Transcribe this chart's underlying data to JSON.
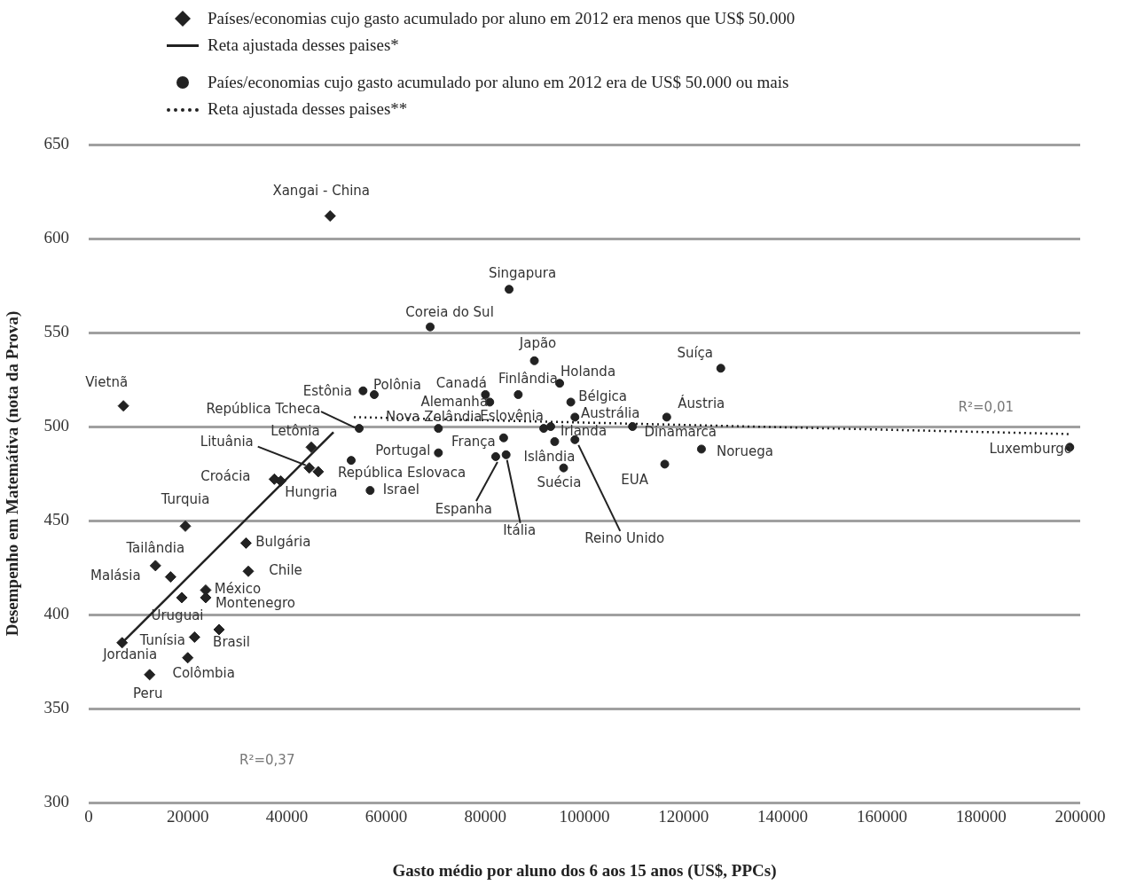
{
  "chart_data": {
    "type": "scatter",
    "xlabel": "Gasto médio por aluno dos 6 aos 15 anos (US$, PPCs)",
    "ylabel": "Desempenho em Matemátiva (nota da Prova)",
    "xlim": [
      0,
      200000
    ],
    "xticks": [
      0,
      20000,
      40000,
      60000,
      80000,
      100000,
      120000,
      140000,
      160000,
      180000,
      200000
    ],
    "ylim": [
      300,
      650
    ],
    "yticks": [
      300,
      350,
      400,
      450,
      500,
      550,
      600,
      650
    ],
    "grid": "y",
    "legend": "top",
    "series": [
      {
        "name": "Países/economias cujo gasto acumulado por aluno em 2012 era menos que US$ 50.000",
        "type": "scatter",
        "marker": "diamond",
        "color": "#222222",
        "x": [
          48700,
          7000,
          44900,
          44500,
          46300,
          37450,
          38750,
          19500,
          13470,
          16520,
          31730,
          32200,
          23600,
          23600,
          18780,
          26300,
          21350,
          6740,
          19980,
          12290
        ],
        "values": [
          612,
          511,
          489,
          478,
          476,
          472,
          471,
          447,
          426,
          420,
          438,
          423,
          413,
          409,
          409,
          392,
          388,
          385,
          377,
          368
        ]
      },
      {
        "name": "Reta ajustada desses paises*",
        "type": "line",
        "line_style": "solid",
        "marker": "none",
        "color": "#222222",
        "x": [
          6740,
          49380
        ],
        "values": [
          385,
          497
        ]
      },
      {
        "name": "Paíes/economias cujo gasto acumulado por aluno em 2012 era de US$ 50.000 ou mais",
        "type": "scatter",
        "marker": "circle",
        "color": "#222222",
        "x": [
          84800,
          68880,
          89900,
          127500,
          95000,
          80030,
          86650,
          80900,
          97250,
          98080,
          116600,
          70540,
          91780,
          93200,
          109700,
          83700,
          94000,
          98080,
          70540,
          82100,
          84200,
          95800,
          123600,
          116200,
          55340,
          57600,
          54560,
          52950,
          56770,
          197900
        ],
        "values": [
          573,
          553,
          535,
          531,
          523,
          517,
          517,
          513,
          513,
          505,
          505,
          499,
          499,
          500,
          500,
          494,
          492,
          493,
          486,
          484,
          485,
          478,
          488,
          480,
          519,
          517,
          499,
          482,
          466,
          489
        ]
      },
      {
        "name": "Reta ajustada desses paises**",
        "type": "line",
        "line_style": "dotted",
        "marker": "none",
        "color": "#222222",
        "x": [
          53500,
          197900
        ],
        "values": [
          505,
          496
        ]
      }
    ],
    "annotations": [
      "R²=0,37",
      "R²=0,01",
      {
        "text": "Xangai - China",
        "x": 48700,
        "y": 612
      },
      {
        "text": "Vietnã",
        "x": 7000,
        "y": 511
      },
      {
        "text": "Letônia",
        "x": 44900,
        "y": 489
      },
      {
        "text": "Lituânia",
        "x": 44500,
        "y": 478
      },
      {
        "text": "Hungria",
        "x": 46300,
        "y": 476
      },
      {
        "text": "Croácia",
        "x": 37450,
        "y": 472
      },
      {
        "text": "Turquia",
        "x": 19500,
        "y": 447
      },
      {
        "text": "Tailândia",
        "x": 13470,
        "y": 426
      },
      {
        "text": "Malásia",
        "x": 16520,
        "y": 420
      },
      {
        "text": "Bulgária",
        "x": 31730,
        "y": 438
      },
      {
        "text": "Chile",
        "x": 32200,
        "y": 423
      },
      {
        "text": "México",
        "x": 23600,
        "y": 413
      },
      {
        "text": "Montenegro",
        "x": 23600,
        "y": 409
      },
      {
        "text": "Uruguai",
        "x": 18780,
        "y": 409
      },
      {
        "text": "Brasil",
        "x": 26300,
        "y": 392
      },
      {
        "text": "Tunísia",
        "x": 21350,
        "y": 388
      },
      {
        "text": "Jordania",
        "x": 6740,
        "y": 385
      },
      {
        "text": "Colômbia",
        "x": 19980,
        "y": 377
      },
      {
        "text": "Peru",
        "x": 12290,
        "y": 368
      },
      {
        "text": "Singapura",
        "x": 84800,
        "y": 573
      },
      {
        "text": "Coreia do Sul",
        "x": 68880,
        "y": 553
      },
      {
        "text": "Japão",
        "x": 89900,
        "y": 535
      },
      {
        "text": "Suíça",
        "x": 127500,
        "y": 531
      },
      {
        "text": "Holanda",
        "x": 95000,
        "y": 523
      },
      {
        "text": "Canadá",
        "x": 80030,
        "y": 517
      },
      {
        "text": "Finlândia",
        "x": 86650,
        "y": 517
      },
      {
        "text": "Alemanha",
        "x": 80900,
        "y": 513
      },
      {
        "text": "Bélgica",
        "x": 97250,
        "y": 513
      },
      {
        "text": "Austrália",
        "x": 98080,
        "y": 505
      },
      {
        "text": "Áustria",
        "x": 116600,
        "y": 505
      },
      {
        "text": "Nova Zelândia",
        "x": 70540,
        "y": 499
      },
      {
        "text": "Eslovênia",
        "x": 91780,
        "y": 499
      },
      {
        "text": "Irlanda",
        "x": 93200,
        "y": 500
      },
      {
        "text": "Dinamarca",
        "x": 109700,
        "y": 500
      },
      {
        "text": "França",
        "x": 83700,
        "y": 494
      },
      {
        "text": "Islândia",
        "x": 94000,
        "y": 492
      },
      {
        "text": "Reino Unido",
        "x": 98080,
        "y": 493
      },
      {
        "text": "Portugal",
        "x": 70540,
        "y": 486
      },
      {
        "text": "Espanha",
        "x": 82100,
        "y": 484
      },
      {
        "text": "Itália",
        "x": 84200,
        "y": 485
      },
      {
        "text": "Suécia",
        "x": 95800,
        "y": 478
      },
      {
        "text": "Noruega",
        "x": 123600,
        "y": 488
      },
      {
        "text": "EUA",
        "x": 116200,
        "y": 480
      },
      {
        "text": "Estônia",
        "x": 55340,
        "y": 519
      },
      {
        "text": "Polônia",
        "x": 57600,
        "y": 517
      },
      {
        "text": "República Tcheca",
        "x": 54560,
        "y": 499
      },
      {
        "text": "República Eslovaca",
        "x": 52950,
        "y": 482
      },
      {
        "text": "Israel",
        "x": 56770,
        "y": 466
      },
      {
        "text": "Luxemburgo",
        "x": 197900,
        "y": 489
      }
    ]
  }
}
